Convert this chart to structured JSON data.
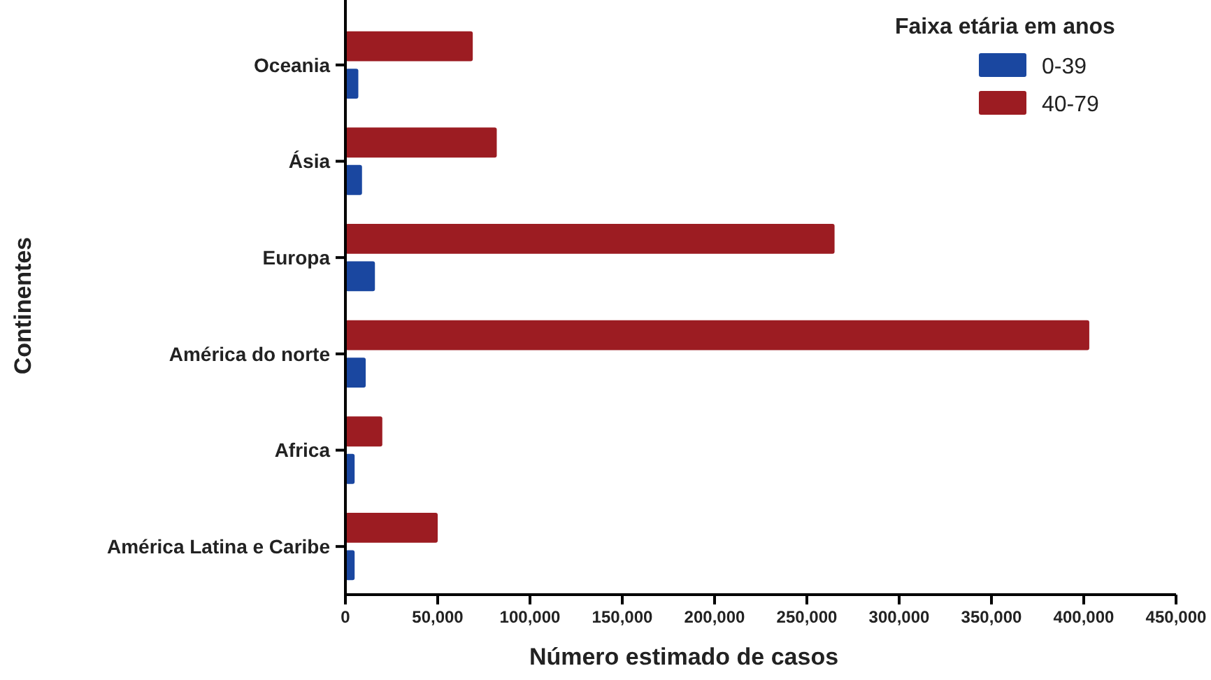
{
  "chart_data": {
    "type": "bar",
    "orientation": "horizontal",
    "xlabel": "Número estimado de casos",
    "ylabel": "Continentes",
    "legend_title": "Faixa etária em anos",
    "legend": "top right",
    "grid": false,
    "categories": [
      "Oceania",
      "Ásia",
      "Europa",
      "América do norte",
      "Africa",
      "América Latina e Caribe"
    ],
    "xlim": [
      0,
      450000
    ],
    "xticks": [
      {
        "value": 0,
        "label": "0"
      },
      {
        "value": 50000,
        "label": "50,000"
      },
      {
        "value": 100000,
        "label": "100,000"
      },
      {
        "value": 150000,
        "label": "150,000"
      },
      {
        "value": 200000,
        "label": "200,000"
      },
      {
        "value": 250000,
        "label": "250,000"
      },
      {
        "value": 300000,
        "label": "300,000"
      },
      {
        "value": 350000,
        "label": "350,000"
      },
      {
        "value": 400000,
        "label": "400,000"
      },
      {
        "value": 450000,
        "label": "450,000"
      }
    ],
    "series": [
      {
        "name": "0-39",
        "color": "#1a47a0",
        "values": [
          7000,
          9000,
          16000,
          11000,
          5000,
          5000
        ]
      },
      {
        "name": "40-79",
        "color": "#9c1c22",
        "values": [
          69000,
          82000,
          265000,
          403000,
          20000,
          50000
        ]
      }
    ]
  }
}
